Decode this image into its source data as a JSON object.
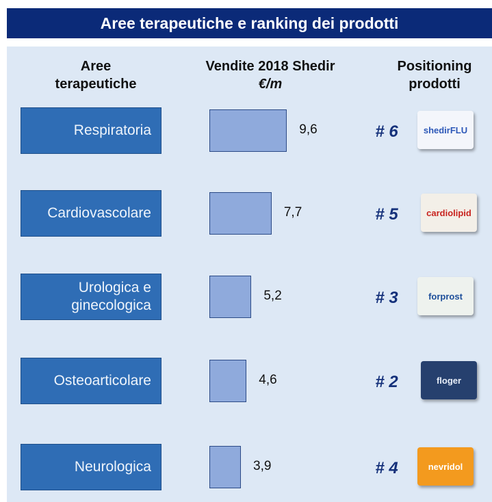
{
  "chart_data": {
    "type": "bar",
    "title": "Aree terapeutiche e ranking dei prodotti",
    "column_headers": {
      "areas": "Aree terapeutiche",
      "sales": "Vendite 2018 Shedir",
      "sales_unit": "€/m",
      "positioning": "Positioning prodotti"
    },
    "categories": [
      "Respiratoria",
      "Cardiovascolare",
      "Urologica e ginecologica",
      "Osteoarticolare",
      "Neurologica"
    ],
    "values": [
      9.6,
      7.7,
      5.2,
      4.6,
      3.9
    ],
    "value_labels": [
      "9,6",
      "7,7",
      "5,2",
      "4,6",
      "3,9"
    ],
    "ranks": [
      "# 6",
      "# 5",
      "# 3",
      "# 2",
      "# 4"
    ],
    "products": [
      "shedirFLU",
      "cardiolipid",
      "forprost",
      "floger",
      "nevridol"
    ],
    "color": "#8faadc"
  }
}
